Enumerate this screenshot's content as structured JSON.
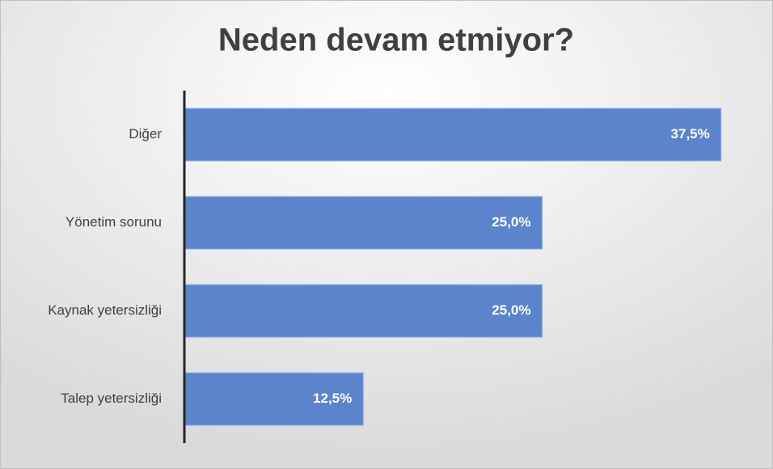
{
  "chart_data": {
    "type": "bar",
    "orientation": "horizontal",
    "title": "Neden devam etmiyor?",
    "categories": [
      "Diğer",
      "Yönetim sorunu",
      "Kaynak yetersizliği",
      "Talep yetersizliği"
    ],
    "values": [
      37.5,
      25.0,
      25.0,
      12.5
    ],
    "value_labels": [
      "37,5%",
      "25,0%",
      "25,0%",
      "12,5%"
    ],
    "color": "#5b84cc",
    "xlim": [
      0,
      40
    ]
  }
}
